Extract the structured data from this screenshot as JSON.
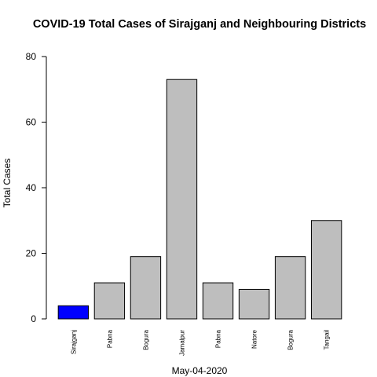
{
  "chart_data": {
    "type": "bar",
    "title": "COVID-19 Total Cases of Sirajganj and Neighbouring Districts",
    "xlabel": "May-04-2020",
    "ylabel": "Total Cases",
    "categories": [
      "Sirajganj",
      "Pabna",
      "Bogura",
      "Jamalpur",
      "Pabna",
      "Natore",
      "Bogura",
      "Tangail"
    ],
    "values": [
      4,
      11,
      19,
      73,
      11,
      9,
      19,
      30
    ],
    "colors": [
      "#0000ff",
      "#bebebe",
      "#bebebe",
      "#bebebe",
      "#bebebe",
      "#bebebe",
      "#bebebe",
      "#bebebe"
    ],
    "ylim": [
      0,
      80
    ],
    "yticks": [
      0,
      20,
      40,
      60,
      80
    ],
    "grid": false,
    "legend": "none"
  }
}
